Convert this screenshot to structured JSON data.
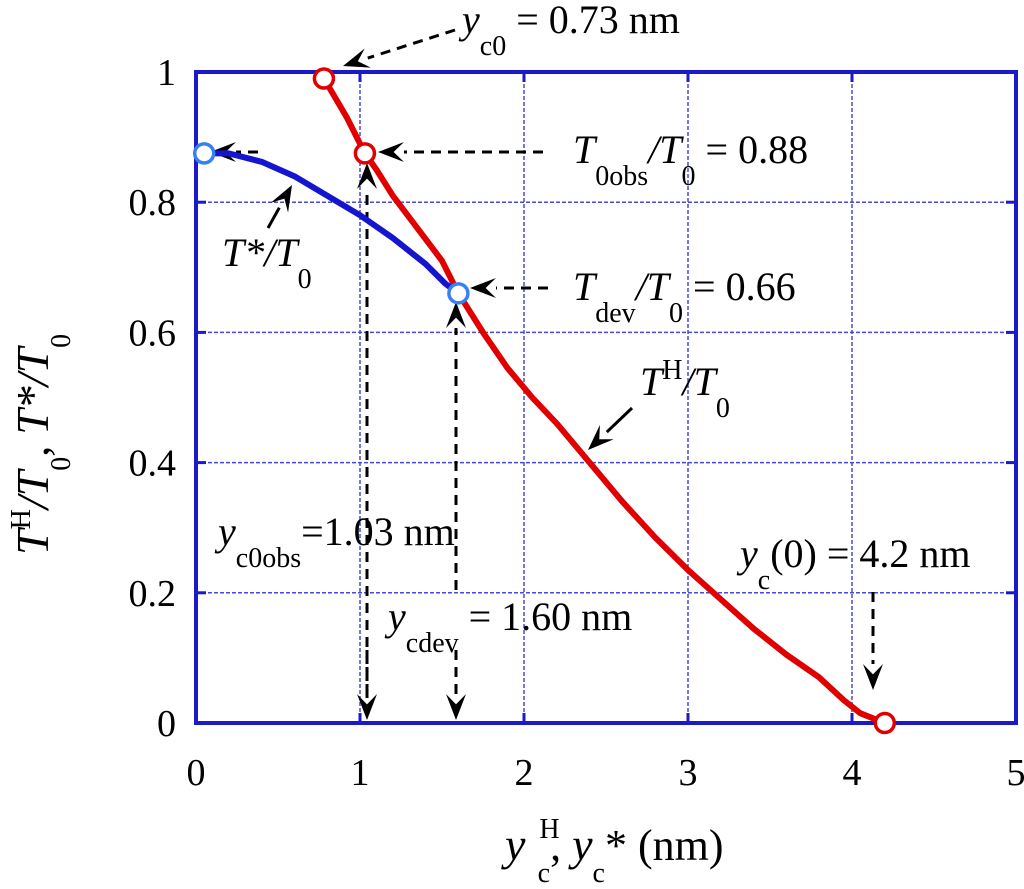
{
  "chart_data": {
    "type": "line",
    "title": "",
    "xlim": [
      0,
      5
    ],
    "ylim": [
      0,
      1
    ],
    "x_ticks": [
      "0",
      "1",
      "2",
      "3",
      "4",
      "5"
    ],
    "y_ticks": [
      "0",
      "0.2",
      "0.4",
      "0.6",
      "0.8",
      "1"
    ],
    "grid": true,
    "series": [
      {
        "name": "TH/T0",
        "color": "#e00000",
        "points": [
          [
            0.78,
            0.99
          ],
          [
            0.85,
            0.96
          ],
          [
            0.92,
            0.93
          ],
          [
            0.98,
            0.9
          ],
          [
            1.03,
            0.875
          ],
          [
            1.1,
            0.85
          ],
          [
            1.2,
            0.81
          ],
          [
            1.35,
            0.76
          ],
          [
            1.5,
            0.71
          ],
          [
            1.6,
            0.66
          ],
          [
            1.75,
            0.6
          ],
          [
            1.9,
            0.545
          ],
          [
            2.05,
            0.5
          ],
          [
            2.2,
            0.46
          ],
          [
            2.4,
            0.4
          ],
          [
            2.6,
            0.34
          ],
          [
            2.8,
            0.285
          ],
          [
            3.0,
            0.235
          ],
          [
            3.2,
            0.19
          ],
          [
            3.4,
            0.145
          ],
          [
            3.6,
            0.105
          ],
          [
            3.8,
            0.07
          ],
          [
            3.95,
            0.035
          ],
          [
            4.05,
            0.015
          ],
          [
            4.2,
            0.0
          ]
        ]
      },
      {
        "name": "T*/T0",
        "color": "#1515d0",
        "points": [
          [
            0.05,
            0.875
          ],
          [
            0.2,
            0.875
          ],
          [
            0.4,
            0.862
          ],
          [
            0.6,
            0.84
          ],
          [
            0.8,
            0.81
          ],
          [
            1.0,
            0.78
          ],
          [
            1.2,
            0.745
          ],
          [
            1.4,
            0.705
          ],
          [
            1.52,
            0.675
          ],
          [
            1.6,
            0.66
          ]
        ]
      }
    ],
    "markers": [
      {
        "series": "TH/T0",
        "x": 0.78,
        "y": 0.99,
        "color": "#e00000"
      },
      {
        "series": "TH/T0",
        "x": 1.03,
        "y": 0.875,
        "color": "#e00000"
      },
      {
        "series": "TH/T0",
        "x": 4.2,
        "y": 0.0,
        "color": "#e00000"
      },
      {
        "series": "T*/T0",
        "x": 0.05,
        "y": 0.875,
        "color": "#3a7ff0"
      },
      {
        "series": "T*/T0",
        "x": 1.6,
        "y": 0.66,
        "color": "#3a7ff0"
      }
    ],
    "annotations": {
      "yc0": {
        "sym": "y",
        "sub": "c0",
        "val": " = 0.73 nm"
      },
      "t0obs": {
        "sym": "T",
        "sub": "0obs",
        "mid": "/T",
        "sub2": "0",
        "val": " = 0.88"
      },
      "tdev": {
        "sym": "T",
        "sub": "dev",
        "mid": "/T",
        "sub2": "0",
        "val": " = 0.66"
      },
      "tstar": {
        "sym": "T",
        "mid": "*/T",
        "sub": "0"
      },
      "th": {
        "sym": "T",
        "sup": "H",
        "mid": "/T",
        "sub": "0"
      },
      "yc0obs": {
        "sym": "y",
        "sub": "c0obs",
        "val": "=1.03 nm"
      },
      "ycdev": {
        "sym": "y",
        "sub": "cdev",
        "val": " = 1.60 nm"
      },
      "yc0zero": {
        "sym": "y",
        "sub": "c",
        "val": "(0) = 4.2 nm"
      }
    },
    "xlabel": {
      "s1": "y",
      "sub1": "c",
      "sup1": "H",
      "mid": ",  ",
      "s2": "y",
      "sub2": "c",
      "tail": "* (nm)"
    },
    "ylabel": {
      "s1": "T",
      "sup1": "H",
      "mid1": "/T",
      "sub1": "0",
      "sep": ",  ",
      "s2": "T",
      "mid2": "*/T",
      "sub2": "0"
    }
  }
}
